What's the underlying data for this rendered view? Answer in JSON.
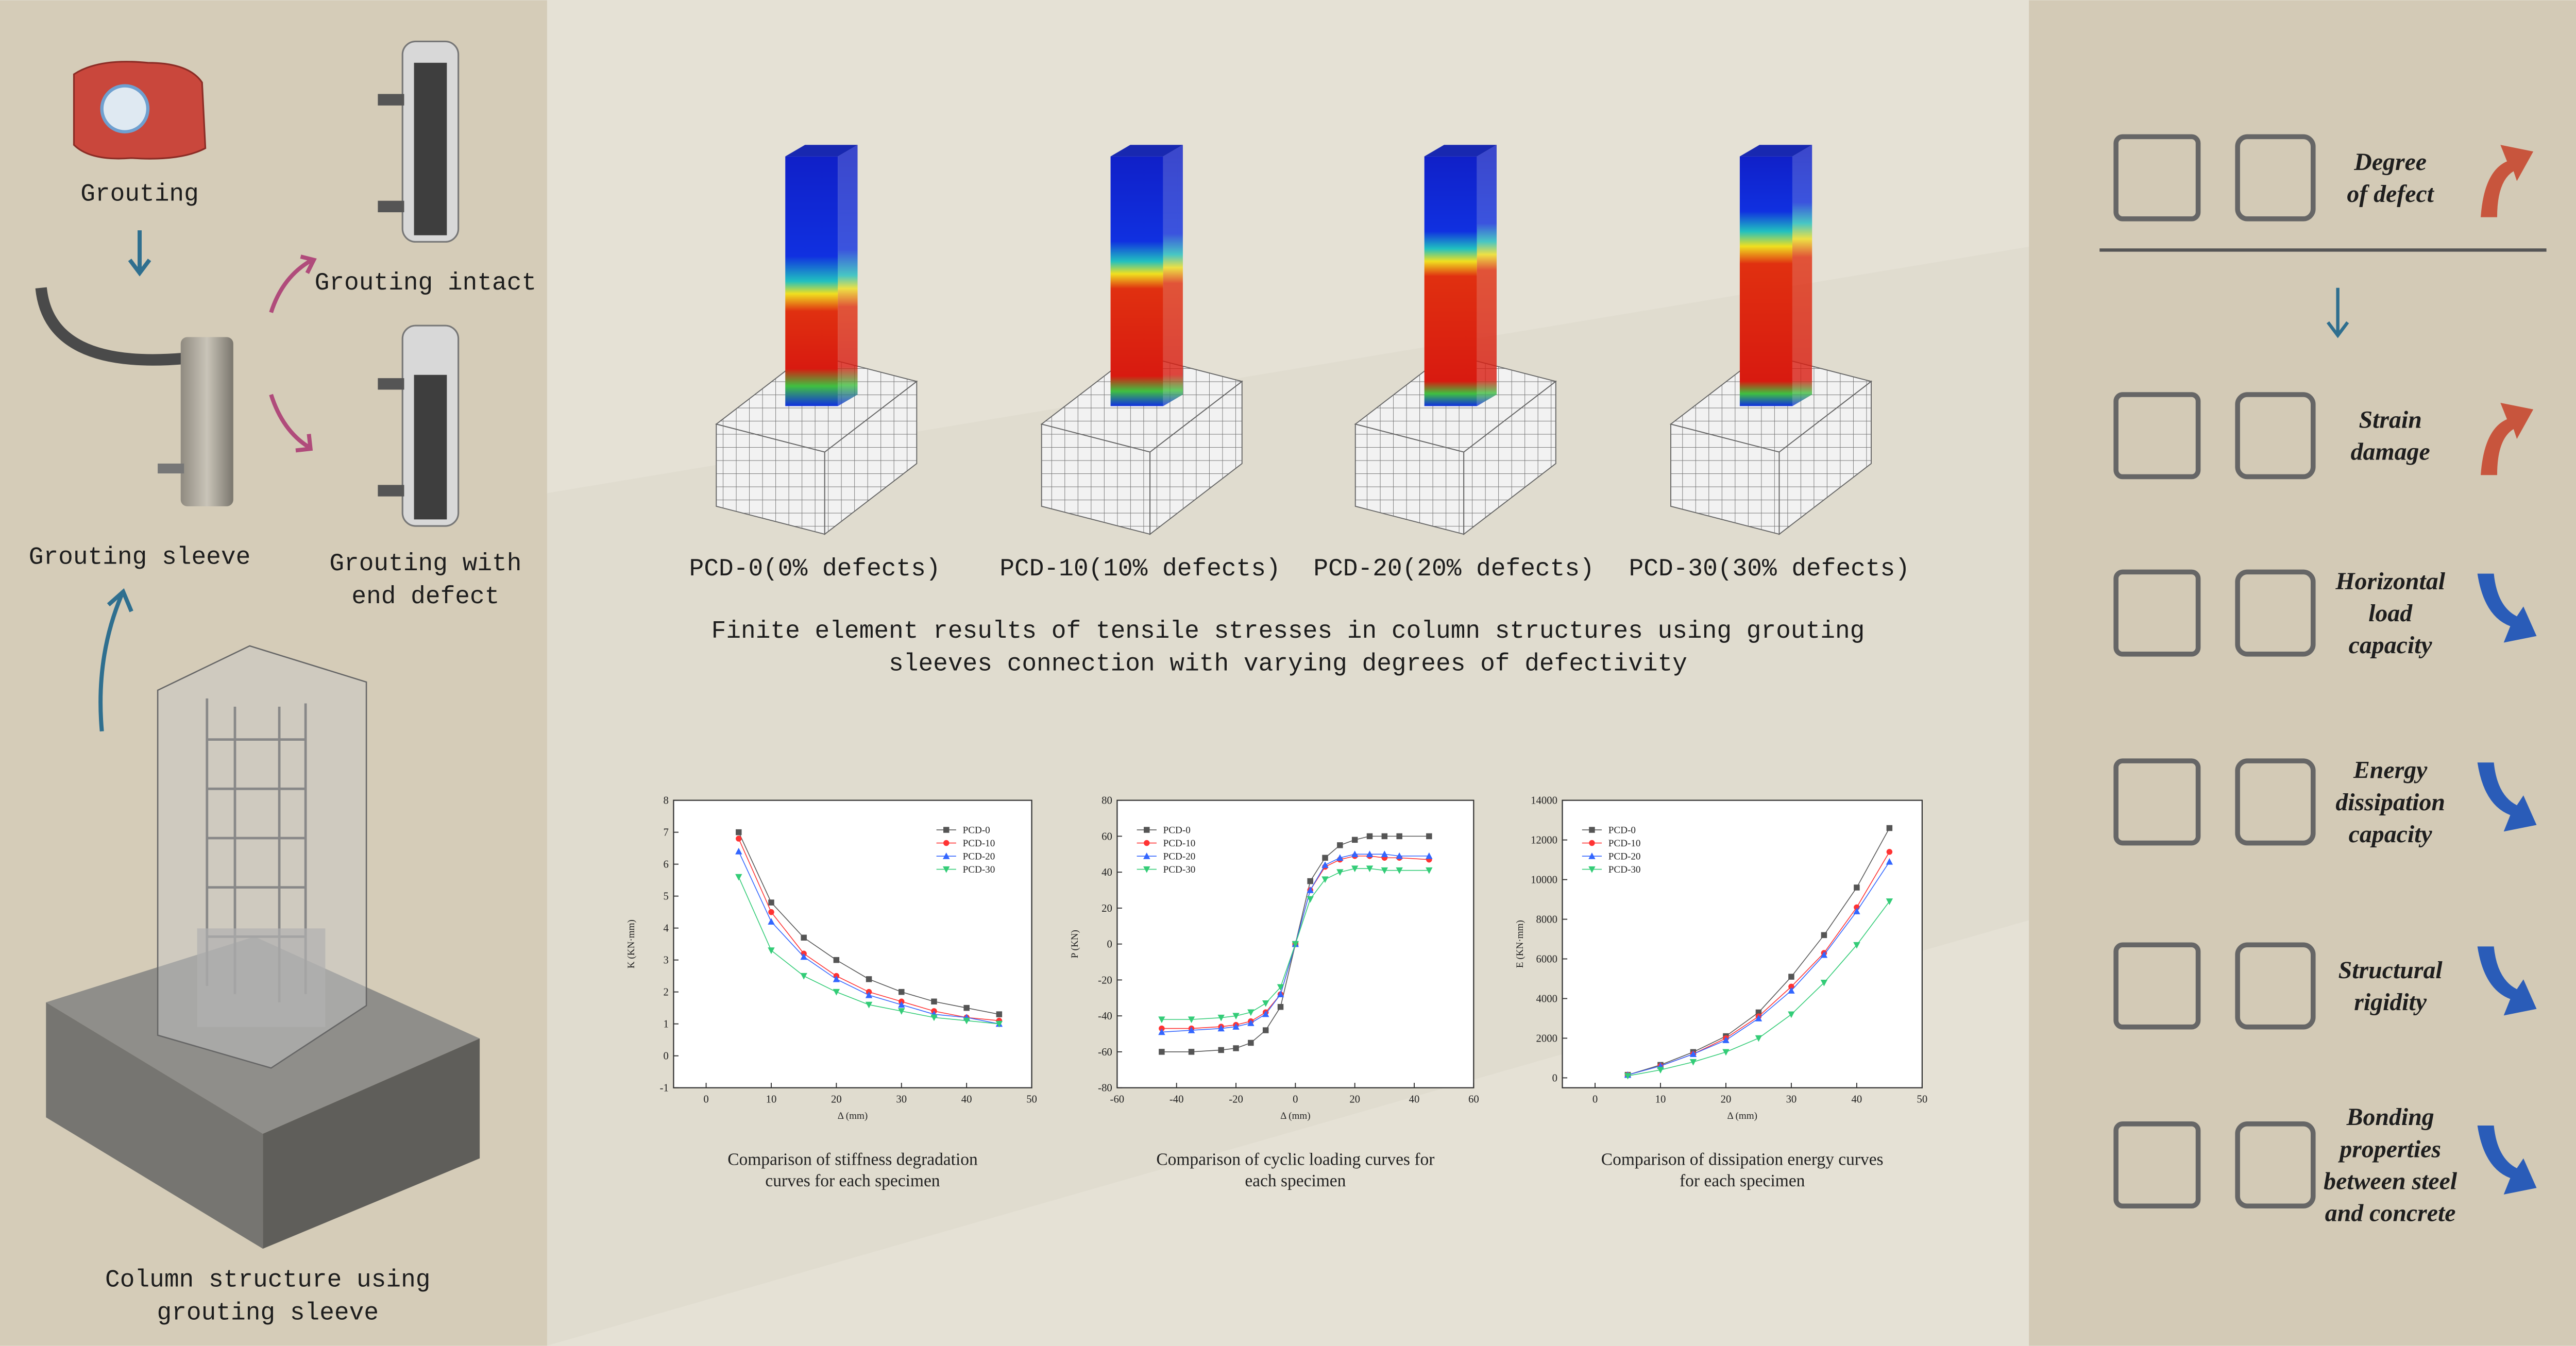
{
  "left_panel": {
    "grouting": "Grouting",
    "grouting_intact": "Grouting intact",
    "grouting_sleeve": "Grouting sleeve",
    "end_defect": [
      "Grouting with",
      "end defect"
    ],
    "column_structure": [
      "Column structure using",
      "grouting sleeve"
    ]
  },
  "fe_results": {
    "specimens": [
      "PCD-0(0% defects)",
      "PCD-10(10% defects)",
      "PCD-20(20% defects)",
      "PCD-30(30% defects)"
    ],
    "caption": [
      "Finite element results of tensile stresses in column structures using grouting",
      "sleeves connection with varying degrees of defectivity"
    ]
  },
  "chart_data": [
    {
      "type": "line",
      "caption": [
        "Comparison of stiffness degradation",
        "curves for each specimen"
      ],
      "xlabel": "Δ (mm)",
      "ylabel": "K (KN·mm)",
      "x": [
        5,
        10,
        15,
        20,
        25,
        30,
        35,
        40,
        45
      ],
      "xlim": [
        -5,
        50
      ],
      "xticks": [
        0,
        10,
        20,
        30,
        40,
        50
      ],
      "ylim": [
        -1,
        8
      ],
      "yticks": [
        -1,
        0,
        1,
        2,
        3,
        4,
        5,
        6,
        7,
        8
      ],
      "legend": "upper right",
      "series": [
        {
          "name": "PCD-0",
          "color": "#555555",
          "marker": "square",
          "values": [
            7.0,
            4.8,
            3.7,
            3.0,
            2.4,
            2.0,
            1.7,
            1.5,
            1.3
          ]
        },
        {
          "name": "PCD-10",
          "color": "#ff3333",
          "marker": "circle",
          "values": [
            6.8,
            4.5,
            3.2,
            2.5,
            2.0,
            1.7,
            1.4,
            1.2,
            1.1
          ]
        },
        {
          "name": "PCD-20",
          "color": "#3366ff",
          "marker": "triangle",
          "values": [
            6.4,
            4.2,
            3.1,
            2.4,
            1.9,
            1.6,
            1.3,
            1.2,
            1.0
          ]
        },
        {
          "name": "PCD-30",
          "color": "#33cc77",
          "marker": "triangle-down",
          "values": [
            5.6,
            3.3,
            2.5,
            2.0,
            1.6,
            1.4,
            1.2,
            1.1,
            1.0
          ]
        }
      ]
    },
    {
      "type": "line",
      "caption": [
        "Comparison of cyclic loading curves for",
        "each specimen"
      ],
      "xlabel": "Δ (mm)",
      "ylabel": "P (KN)",
      "x": [
        -45,
        -35,
        -25,
        -20,
        -15,
        -10,
        -5,
        0,
        5,
        10,
        15,
        20,
        25,
        30,
        35,
        45
      ],
      "xlim": [
        -60,
        60
      ],
      "xticks": [
        -60,
        -40,
        -20,
        0,
        20,
        40,
        60
      ],
      "ylim": [
        -80,
        80
      ],
      "yticks": [
        -80,
        -60,
        -40,
        -20,
        0,
        20,
        40,
        60,
        80
      ],
      "legend": "upper left",
      "series": [
        {
          "name": "PCD-0",
          "color": "#555555",
          "marker": "square",
          "values": [
            -60,
            -60,
            -59,
            -58,
            -55,
            -48,
            -35,
            0,
            35,
            48,
            55,
            58,
            60,
            60,
            60,
            60
          ]
        },
        {
          "name": "PCD-10",
          "color": "#ff3333",
          "marker": "circle",
          "values": [
            -47,
            -47,
            -46,
            -45,
            -43,
            -38,
            -28,
            0,
            30,
            43,
            47,
            49,
            49,
            48,
            48,
            47
          ]
        },
        {
          "name": "PCD-20",
          "color": "#3366ff",
          "marker": "triangle",
          "values": [
            -49,
            -48,
            -47,
            -46,
            -44,
            -39,
            -28,
            0,
            30,
            44,
            48,
            50,
            50,
            50,
            49,
            49
          ]
        },
        {
          "name": "PCD-30",
          "color": "#33cc77",
          "marker": "triangle-down",
          "values": [
            -42,
            -42,
            -41,
            -40,
            -38,
            -33,
            -24,
            0,
            25,
            36,
            40,
            42,
            42,
            41,
            41,
            41
          ]
        }
      ]
    },
    {
      "type": "line",
      "caption": [
        "Comparison of dissipation energy curves",
        "for each specimen"
      ],
      "xlabel": "Δ (mm)",
      "ylabel": "E (KN·mm)",
      "x": [
        5,
        10,
        15,
        20,
        25,
        30,
        35,
        40,
        45
      ],
      "xlim": [
        -5,
        50
      ],
      "xticks": [
        0,
        10,
        20,
        30,
        40,
        50
      ],
      "ylim": [
        -500,
        14000
      ],
      "yticks": [
        0,
        2000,
        4000,
        6000,
        8000,
        10000,
        12000,
        14000
      ],
      "legend": "upper left",
      "series": [
        {
          "name": "PCD-0",
          "color": "#555555",
          "marker": "square",
          "values": [
            150,
            650,
            1300,
            2100,
            3300,
            5100,
            7200,
            9600,
            12600
          ]
        },
        {
          "name": "PCD-10",
          "color": "#ff3333",
          "marker": "circle",
          "values": [
            150,
            600,
            1200,
            2000,
            3100,
            4600,
            6300,
            8600,
            11400
          ]
        },
        {
          "name": "PCD-20",
          "color": "#3366ff",
          "marker": "triangle",
          "values": [
            150,
            600,
            1200,
            1900,
            3000,
            4400,
            6200,
            8400,
            10900
          ]
        },
        {
          "name": "PCD-30",
          "color": "#33cc77",
          "marker": "triangle-down",
          "values": [
            100,
            400,
            800,
            1300,
            2000,
            3200,
            4800,
            6700,
            8900
          ]
        }
      ]
    }
  ],
  "right_panel": {
    "items": [
      {
        "lines": [
          "Degree",
          "of defect"
        ],
        "trend": "up"
      },
      {
        "lines": [
          "Strain",
          "damage"
        ],
        "trend": "up"
      },
      {
        "lines": [
          "Horizontal",
          "load",
          "capacity"
        ],
        "trend": "down"
      },
      {
        "lines": [
          "Energy",
          "dissipation",
          "capacity"
        ],
        "trend": "down"
      },
      {
        "lines": [
          "Structural",
          "rigidity"
        ],
        "trend": "down"
      },
      {
        "lines": [
          "Bonding",
          "properties",
          "between steel",
          "and concrete"
        ],
        "trend": "down"
      }
    ]
  }
}
